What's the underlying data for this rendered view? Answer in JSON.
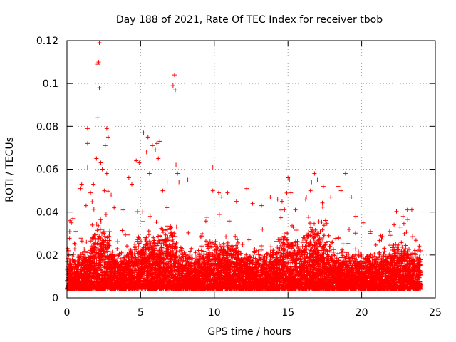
{
  "chart_data": {
    "type": "scatter",
    "title": "Day 188 of 2021, Rate Of TEC Index for receiver tbob",
    "xlabel": "GPS time / hours",
    "ylabel": "ROTI / TECUs",
    "xlim": [
      0,
      25
    ],
    "ylim": [
      0,
      0.12
    ],
    "x_ticks": [
      0,
      5,
      10,
      15,
      20,
      25
    ],
    "y_ticks": [
      0,
      0.02,
      0.04,
      0.06,
      0.08,
      0.1,
      0.12
    ],
    "x_tick_labels": [
      "0",
      "5",
      "10",
      "15",
      "20",
      "25"
    ],
    "y_tick_labels": [
      "0",
      "0.02",
      "0.04",
      "0.06",
      "0.08",
      "0.1",
      "0.12"
    ],
    "grid": true,
    "marker": "+",
    "series": [
      {
        "name": "ROTI",
        "color": "#ff0000",
        "points": [
          [
            0.1,
            0.022
          ],
          [
            0.2,
            0.036
          ],
          [
            0.3,
            0.035
          ],
          [
            0.4,
            0.037
          ],
          [
            0.6,
            0.031
          ],
          [
            0.9,
            0.051
          ],
          [
            1.0,
            0.053
          ],
          [
            1.3,
            0.043
          ],
          [
            1.4,
            0.061
          ],
          [
            1.4,
            0.072
          ],
          [
            1.4,
            0.079
          ],
          [
            1.6,
            0.049
          ],
          [
            1.8,
            0.053
          ],
          [
            2.0,
            0.065
          ],
          [
            2.1,
            0.084
          ],
          [
            2.1,
            0.109
          ],
          [
            2.15,
            0.11
          ],
          [
            2.2,
            0.119
          ],
          [
            2.2,
            0.098
          ],
          [
            2.3,
            0.063
          ],
          [
            2.4,
            0.06
          ],
          [
            2.6,
            0.071
          ],
          [
            2.7,
            0.079
          ],
          [
            2.8,
            0.075
          ],
          [
            2.7,
            0.058
          ],
          [
            3.0,
            0.048
          ],
          [
            3.2,
            0.042
          ],
          [
            3.8,
            0.041
          ],
          [
            4.2,
            0.056
          ],
          [
            4.4,
            0.053
          ],
          [
            4.7,
            0.064
          ],
          [
            4.9,
            0.063
          ],
          [
            5.2,
            0.077
          ],
          [
            5.4,
            0.068
          ],
          [
            5.5,
            0.075
          ],
          [
            5.6,
            0.058
          ],
          [
            5.8,
            0.071
          ],
          [
            6.0,
            0.069
          ],
          [
            6.1,
            0.072
          ],
          [
            6.2,
            0.065
          ],
          [
            6.3,
            0.073
          ],
          [
            6.5,
            0.05
          ],
          [
            6.8,
            0.054
          ],
          [
            7.2,
            0.099
          ],
          [
            7.3,
            0.104
          ],
          [
            7.35,
            0.097
          ],
          [
            7.4,
            0.062
          ],
          [
            7.5,
            0.058
          ],
          [
            7.6,
            0.054
          ],
          [
            8.2,
            0.055
          ],
          [
            9.9,
            0.061
          ],
          [
            9.9,
            0.05
          ],
          [
            10.3,
            0.049
          ],
          [
            10.5,
            0.047
          ],
          [
            10.9,
            0.049
          ],
          [
            11.5,
            0.045
          ],
          [
            12.2,
            0.051
          ],
          [
            12.6,
            0.044
          ],
          [
            13.2,
            0.043
          ],
          [
            13.8,
            0.047
          ],
          [
            14.3,
            0.046
          ],
          [
            14.6,
            0.045
          ],
          [
            15.0,
            0.056
          ],
          [
            15.1,
            0.055
          ],
          [
            15.2,
            0.049
          ],
          [
            15.5,
            0.041
          ],
          [
            16.2,
            0.046
          ],
          [
            16.6,
            0.054
          ],
          [
            16.8,
            0.058
          ],
          [
            17.0,
            0.055
          ],
          [
            17.4,
            0.052
          ],
          [
            17.9,
            0.047
          ],
          [
            18.4,
            0.052
          ],
          [
            18.6,
            0.05
          ],
          [
            18.9,
            0.058
          ],
          [
            19.3,
            0.047
          ],
          [
            19.6,
            0.038
          ],
          [
            20.1,
            0.035
          ],
          [
            20.6,
            0.031
          ],
          [
            21.3,
            0.029
          ],
          [
            21.9,
            0.031
          ],
          [
            22.6,
            0.033
          ],
          [
            23.1,
            0.041
          ],
          [
            23.4,
            0.041
          ],
          [
            23.8,
            0.022
          ],
          [
            23.9,
            0.018
          ]
        ]
      }
    ]
  }
}
